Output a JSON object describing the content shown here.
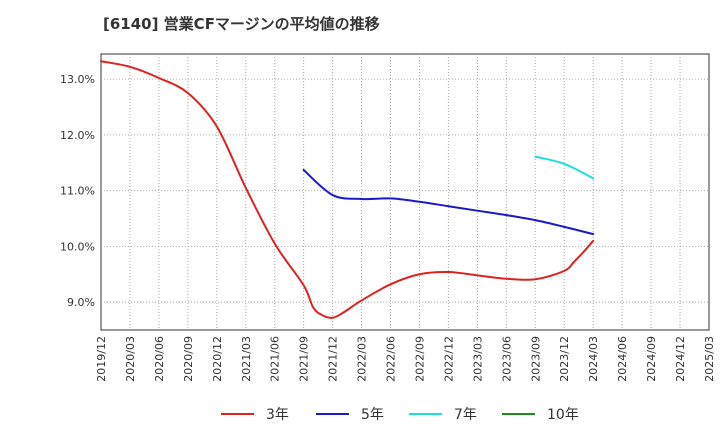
{
  "chart_data": {
    "type": "line",
    "title": "[6140]  営業CFマージンの平均値の推移",
    "xlabel": "",
    "ylabel": "",
    "x_ticks": [
      "2019/12",
      "2020/03",
      "2020/06",
      "2020/09",
      "2020/12",
      "2021/03",
      "2021/06",
      "2021/09",
      "2021/12",
      "2022/03",
      "2022/06",
      "2022/09",
      "2022/12",
      "2023/03",
      "2023/06",
      "2023/09",
      "2023/12",
      "2024/03",
      "2024/06",
      "2024/09",
      "2024/12",
      "2025/03"
    ],
    "y_ticks": [
      "9.0%",
      "10.0%",
      "11.0%",
      "12.0%",
      "13.0%"
    ],
    "y_tick_values": [
      9,
      10,
      11,
      12,
      13
    ],
    "ylim": [
      8.5,
      13.45
    ],
    "grid": true,
    "legend_position": "bottom",
    "series": [
      {
        "name": "3年",
        "color": "#dd2222",
        "x": [
          "2019/12",
          "2020/03",
          "2020/06",
          "2020/09",
          "2020/12",
          "2021/03",
          "2021/06",
          "2021/09",
          "2021/10",
          "2021/11",
          "2021/12",
          "2022/01",
          "2022/03",
          "2022/06",
          "2022/09",
          "2022/12",
          "2023/03",
          "2023/06",
          "2023/09",
          "2023/12",
          "2024/01",
          "2024/02",
          "2024/03"
        ],
        "values": [
          13.32,
          13.22,
          13.02,
          12.75,
          12.15,
          11.05,
          10.05,
          9.3,
          8.9,
          8.76,
          8.72,
          8.8,
          9.03,
          9.32,
          9.5,
          9.54,
          9.48,
          9.42,
          9.41,
          9.56,
          9.72,
          9.9,
          10.1
        ]
      },
      {
        "name": "5年",
        "color": "#1a1acc",
        "x": [
          "2021/09",
          "2021/12",
          "2022/03",
          "2022/06",
          "2022/09",
          "2022/12",
          "2023/03",
          "2023/06",
          "2023/09",
          "2023/12",
          "2024/03"
        ],
        "values": [
          11.37,
          10.92,
          10.85,
          10.86,
          10.8,
          10.72,
          10.64,
          10.56,
          10.47,
          10.35,
          10.22
        ]
      },
      {
        "name": "7年",
        "color": "#22dddd",
        "x": [
          "2023/09",
          "2023/12",
          "2024/03"
        ],
        "values": [
          11.61,
          11.48,
          11.22
        ]
      },
      {
        "name": "10年",
        "color": "#228822",
        "x": [],
        "values": []
      }
    ]
  }
}
